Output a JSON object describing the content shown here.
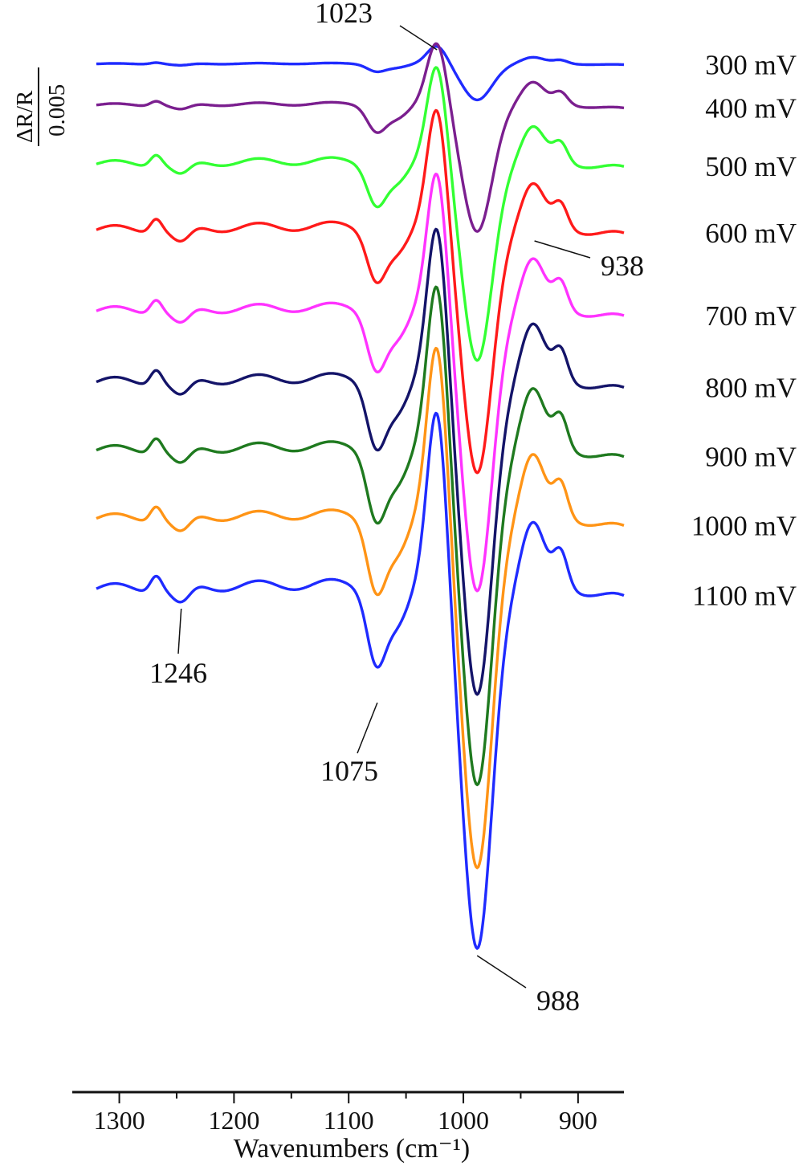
{
  "chart_data": {
    "type": "line",
    "title": "",
    "subtitle": "",
    "xlabel": "Wavenumbers (cm⁻¹)",
    "ylabel": "",
    "x_axis": {
      "min": 860,
      "max": 1320,
      "reversed": true,
      "ticks": [
        1300,
        1200,
        1100,
        1000,
        900
      ]
    },
    "tick_labels": [
      "1300",
      "1200",
      "1100",
      "1000",
      "900"
    ],
    "grid": false,
    "legend": "none; series labels printed at right end of each trace",
    "scale_bar": {
      "numerator": "ΔR/R",
      "denominator": "0.005"
    },
    "peak_labels": [
      {
        "text": "1023",
        "x": 1023
      },
      {
        "text": "938",
        "x": 938
      },
      {
        "text": "1246",
        "x": 1246
      },
      {
        "text": "1075",
        "x": 1075
      },
      {
        "text": "988",
        "x": 988
      }
    ],
    "series": [
      {
        "name": "300 mV",
        "color": "#1f2bff",
        "baseline": 79,
        "band_scale": 0.1,
        "low_scale": 0.1
      },
      {
        "name": "400 mV",
        "color": "#7b1f8f",
        "baseline": 129,
        "band_scale": 0.35,
        "low_scale": 0.3
      },
      {
        "name": "500 mV",
        "color": "#33ff33",
        "baseline": 200,
        "band_scale": 0.55,
        "low_scale": 0.7
      },
      {
        "name": "600 mV",
        "color": "#ff1a1a",
        "baseline": 281,
        "band_scale": 0.68,
        "low_scale": 0.85
      },
      {
        "name": "700 mV",
        "color": "#ff33ff",
        "baseline": 382,
        "band_scale": 0.78,
        "low_scale": 0.85
      },
      {
        "name": "800 mV",
        "color": "#141469",
        "baseline": 470,
        "band_scale": 0.87,
        "low_scale": 0.92
      },
      {
        "name": "900 mV",
        "color": "#1f7a1f",
        "baseline": 555,
        "band_scale": 0.93,
        "low_scale": 0.92
      },
      {
        "name": "1000 mV",
        "color": "#ff9416",
        "baseline": 640,
        "band_scale": 0.97,
        "low_scale": 0.92
      },
      {
        "name": "1100 mV",
        "color": "#1f2bff",
        "baseline": 727,
        "band_scale": 1.0,
        "low_scale": 1.0
      }
    ]
  }
}
